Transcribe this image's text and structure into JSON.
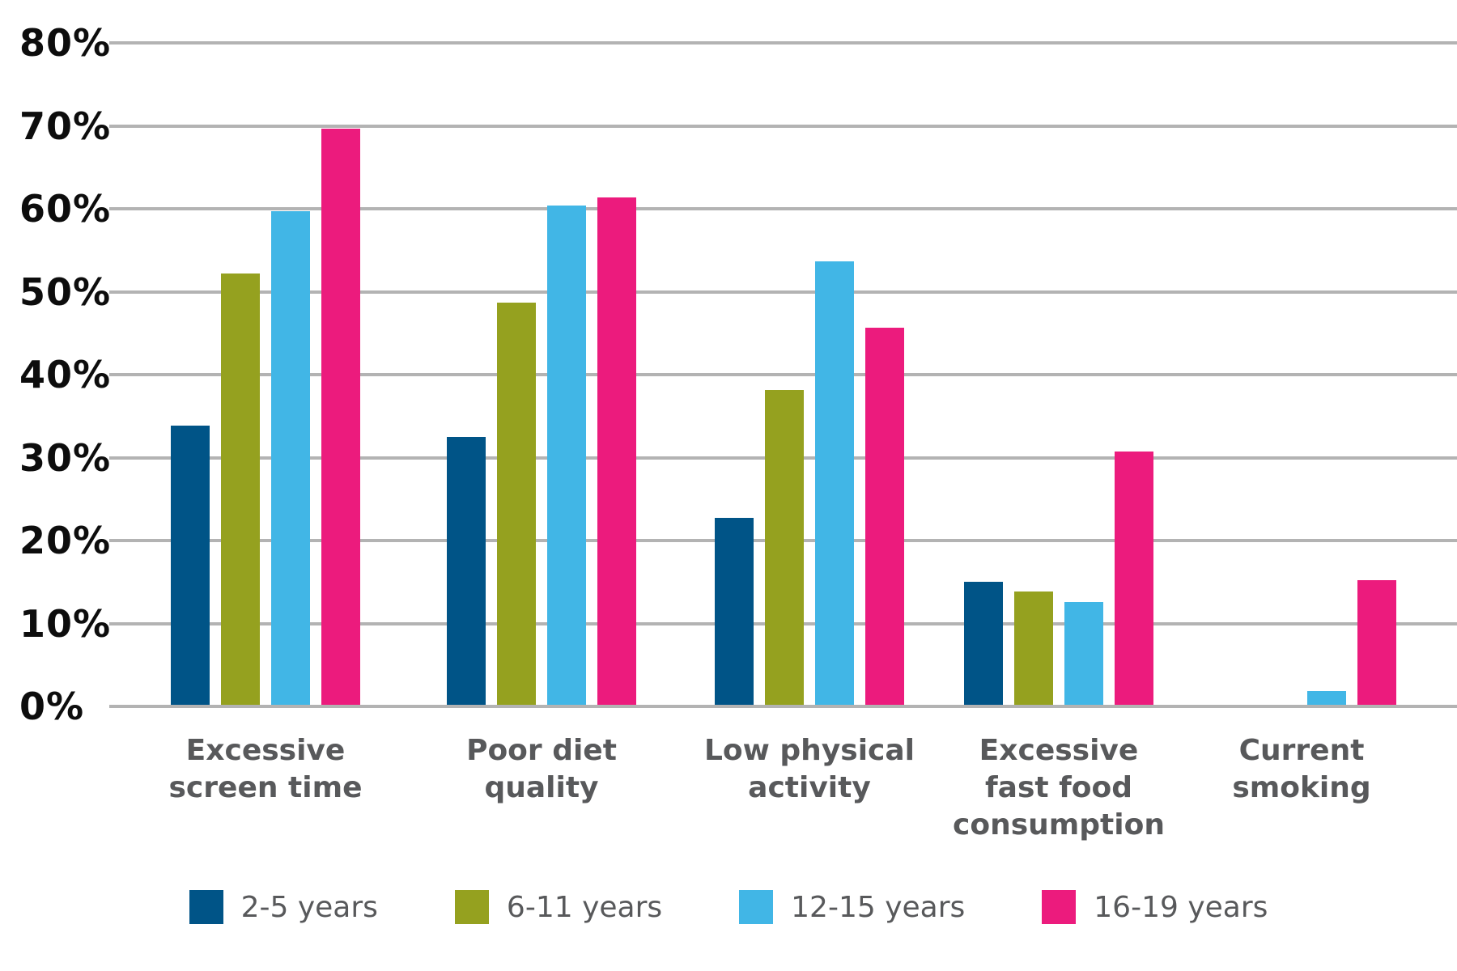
{
  "chart_data": {
    "type": "bar",
    "title": "",
    "categories": [
      "Excessive screen time",
      "Poor diet quality",
      "Low physical activity",
      "Excessive fast food consumption",
      "Current smoking"
    ],
    "category_label_lines": [
      [
        "Excessive",
        "screen time"
      ],
      [
        "Poor diet",
        "quality"
      ],
      [
        "Low physical",
        "activity"
      ],
      [
        "Excessive",
        "fast food",
        "consumption"
      ],
      [
        "Current",
        "smoking"
      ]
    ],
    "series": [
      {
        "name": "2-5 years",
        "color": "#005487",
        "values": [
          33.7,
          32.3,
          22.5,
          14.8,
          0
        ]
      },
      {
        "name": "6-11 years",
        "color": "#95A11F",
        "values": [
          52.0,
          48.5,
          38.0,
          13.7,
          0
        ]
      },
      {
        "name": "12-15 years",
        "color": "#41B6E6",
        "values": [
          59.5,
          60.2,
          53.5,
          12.4,
          1.7
        ]
      },
      {
        "name": "16-19 years",
        "color": "#EC1B7D",
        "values": [
          69.5,
          61.2,
          45.5,
          30.5,
          15.0
        ]
      }
    ],
    "ylabel": "",
    "xlabel": "",
    "ylim": [
      0,
      80
    ],
    "ytick_step": 10,
    "ytick_labels": [
      "0%",
      "10%",
      "20%",
      "30%",
      "40%",
      "50%",
      "60%",
      "70%",
      "80%"
    ],
    "grid": "horizontal",
    "legend_position": "bottom"
  },
  "colors": {
    "background": "#ffffff",
    "gridline": "#b3b3b3",
    "axis_tick_text": "#0d0d0d",
    "category_text": "#58595b",
    "legend_text": "#58595b"
  }
}
